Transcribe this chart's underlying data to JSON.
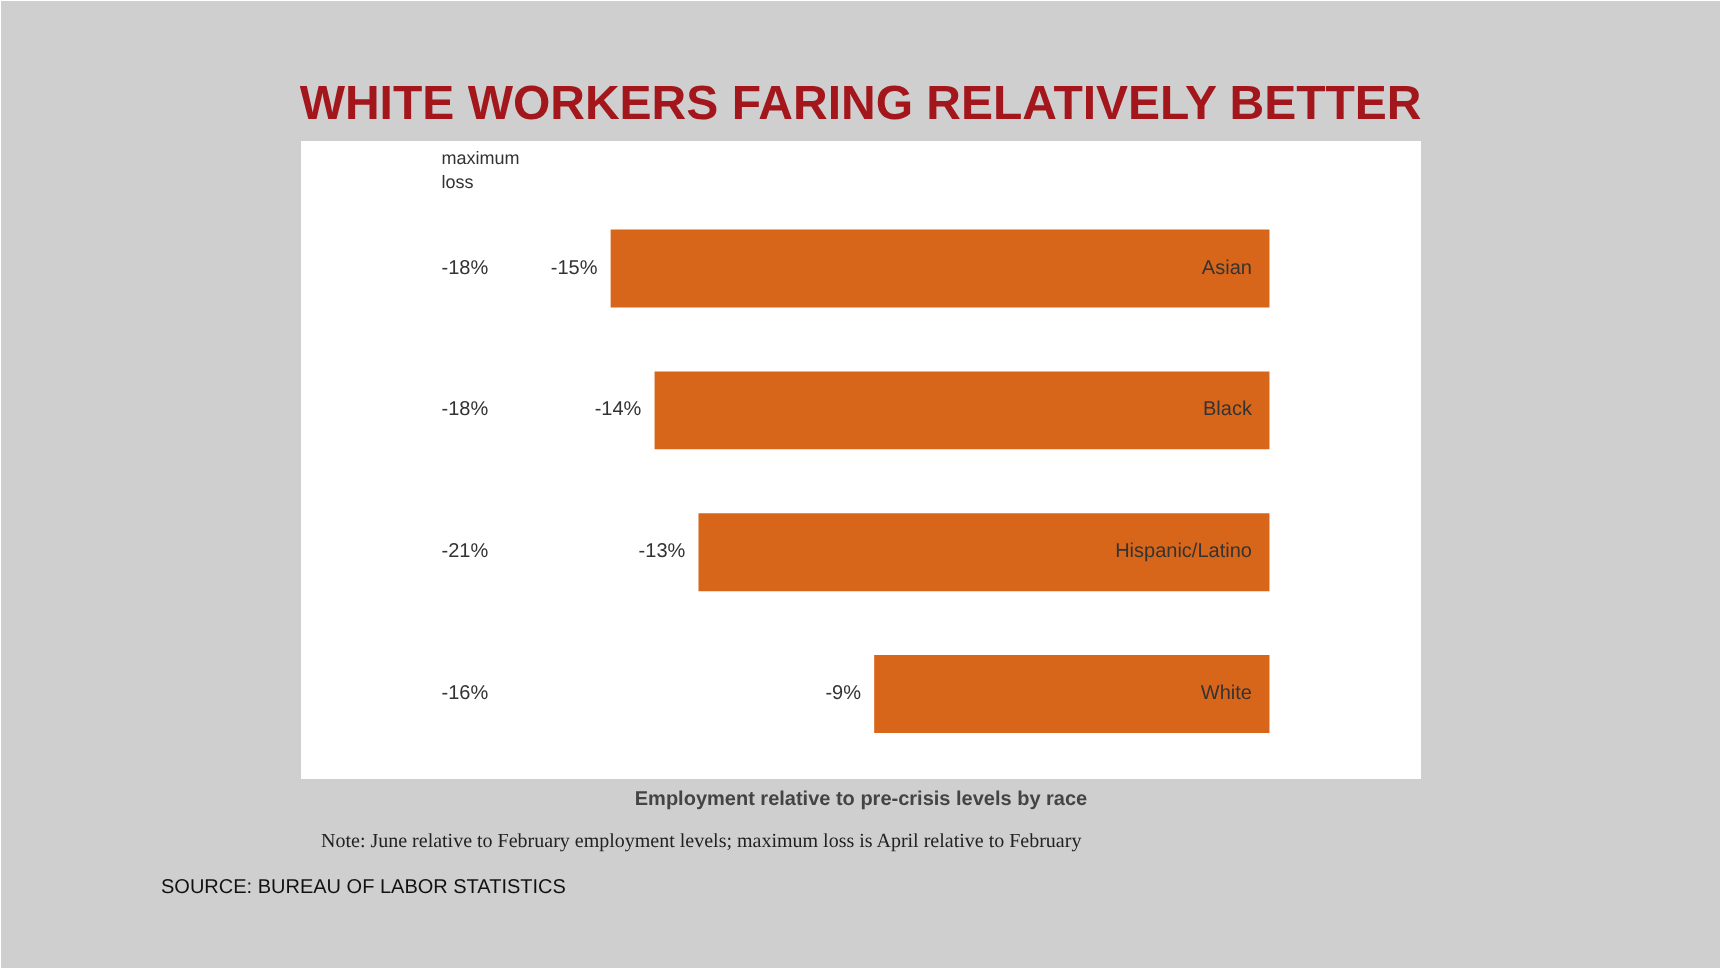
{
  "chart_data": {
    "type": "bar",
    "orientation": "horizontal",
    "title": "WHITE WORKERS FARING RELATIVELY BETTER",
    "categories": [
      "Asian",
      "Black",
      "Hispanic/Latino",
      "White"
    ],
    "values": [
      -15,
      -14,
      -13,
      -9
    ],
    "value_labels": [
      "-15%",
      "-14%",
      "-13%",
      "-9%"
    ],
    "color": "#d8661a",
    "xlabel": "Employment relative to pre-crisis levels by race",
    "annotations": [
      "maximum\nloss",
      "-18%",
      "-18%",
      "-21%",
      "-16%",
      "Note: June relative to February employment levels; maximum loss is April relative to February",
      "SOURCE: BUREAU OF LABOR STATISTICS"
    ],
    "grid": false
  }
}
